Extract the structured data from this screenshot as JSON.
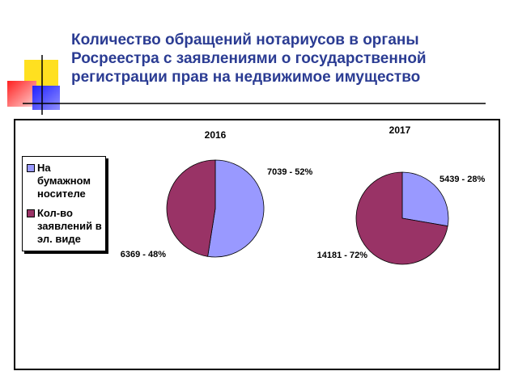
{
  "title": [
    "Количество обращений нотариусов в органы",
    "Росреестра с заявлениями о государственной",
    "регистрации прав на недвижимое имущество"
  ],
  "chart_data": [
    {
      "type": "pie",
      "title": "2016",
      "categories": [
        "На бумажном носителе",
        "Кол-во заявлений в эл. виде"
      ],
      "values": [
        7039,
        6369
      ],
      "value_labels": [
        "7039 - 52%",
        "6369 - 48%"
      ],
      "colors": [
        "#9999ff",
        "#993366"
      ]
    },
    {
      "type": "pie",
      "title": "2017",
      "values": [
        5439,
        14181
      ],
      "value_labels": [
        "5439 - 28%",
        "14181 - 72%"
      ],
      "colors": [
        "#9999ff",
        "#993366"
      ]
    }
  ]
}
